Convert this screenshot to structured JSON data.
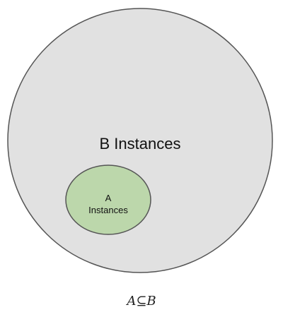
{
  "diagram": {
    "outer_set": {
      "label": "B Instances",
      "fill": "#e1e1e1",
      "stroke": "#555555"
    },
    "inner_set": {
      "label_line1": "A",
      "label_line2": "Instances",
      "fill": "#bcd7ab",
      "stroke": "#555555"
    },
    "relation": "A⊆B"
  }
}
